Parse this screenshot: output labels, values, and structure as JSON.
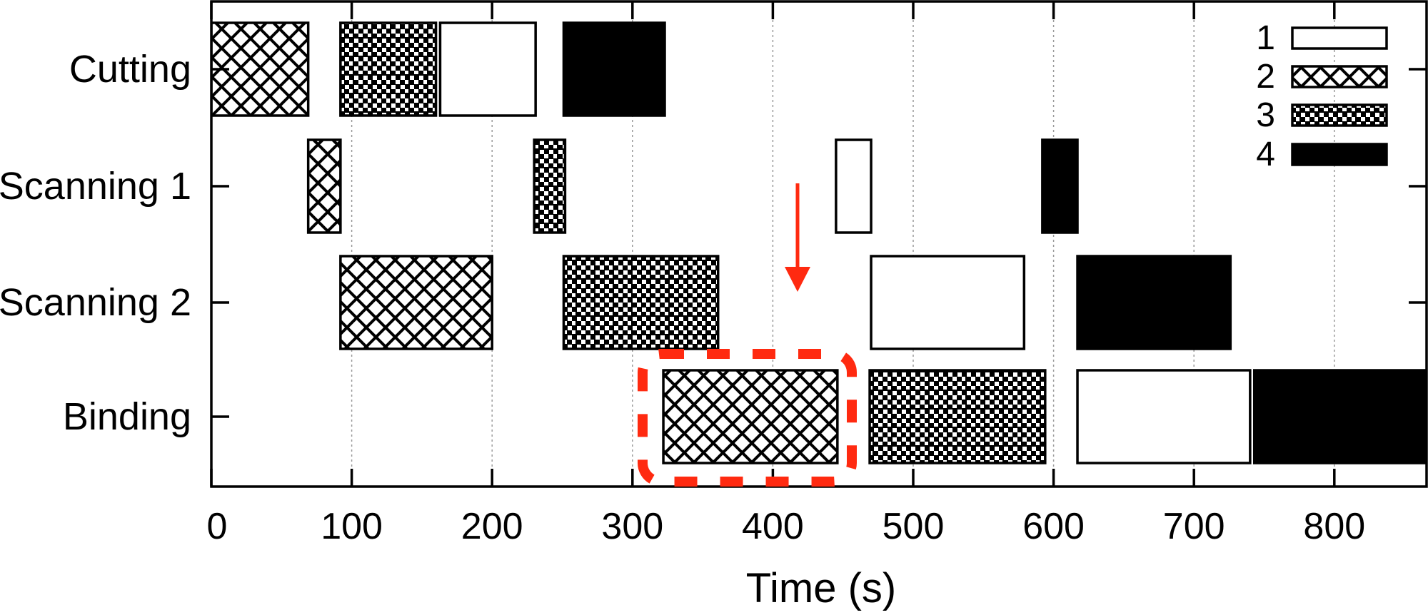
{
  "chart_data": {
    "type": "gantt",
    "title": "",
    "xlabel": "Time (s)",
    "ylabel": "",
    "xlim": [
      0,
      866
    ],
    "x_ticks": [
      0,
      100,
      200,
      300,
      400,
      500,
      600,
      700,
      800
    ],
    "x_tick_labels": [
      "0",
      "100",
      "200",
      "300",
      "400",
      "500",
      "600",
      "700",
      "800"
    ],
    "grid": {
      "x": true,
      "y": false,
      "style": "dotted gray"
    },
    "legend": {
      "position": "top-right",
      "entries": [
        {
          "label": "1",
          "pattern": "empty"
        },
        {
          "label": "2",
          "pattern": "crosshatch"
        },
        {
          "label": "3",
          "pattern": "checker"
        },
        {
          "label": "4",
          "pattern": "solid"
        }
      ]
    },
    "categories": [
      "Cutting",
      "Scanning 1",
      "Scanning 2",
      "Binding"
    ],
    "series": [
      {
        "category": "Cutting",
        "tasks": [
          {
            "job": "2",
            "start": 0,
            "end": 69
          },
          {
            "job": "3",
            "start": 92,
            "end": 160
          },
          {
            "job": "1",
            "start": 163,
            "end": 231
          },
          {
            "job": "4",
            "start": 251,
            "end": 323
          }
        ]
      },
      {
        "category": "Scanning 1",
        "tasks": [
          {
            "job": "2",
            "start": 69,
            "end": 92
          },
          {
            "job": "3",
            "start": 230,
            "end": 252
          },
          {
            "job": "1",
            "start": 445,
            "end": 470
          },
          {
            "job": "4",
            "start": 592,
            "end": 617
          }
        ]
      },
      {
        "category": "Scanning 2",
        "tasks": [
          {
            "job": "2",
            "start": 92,
            "end": 200
          },
          {
            "job": "3",
            "start": 251,
            "end": 361
          },
          {
            "job": "1",
            "start": 470,
            "end": 579
          },
          {
            "job": "4",
            "start": 617,
            "end": 726
          }
        ]
      },
      {
        "category": "Binding",
        "tasks": [
          {
            "job": "2",
            "start": 322,
            "end": 446
          },
          {
            "job": "3",
            "start": 469,
            "end": 594
          },
          {
            "job": "1",
            "start": 617,
            "end": 740
          },
          {
            "job": "4",
            "start": 743,
            "end": 870
          }
        ]
      }
    ],
    "annotations": [
      {
        "type": "arrow",
        "color": "#ff2a10",
        "x": 415,
        "from_row": "between Scanning 1 and Scanning 2",
        "direction": "down"
      },
      {
        "type": "dashed-rounded-box",
        "color": "#ff2a10",
        "around": "Binding job 2 (322-446 s)"
      }
    ]
  },
  "colors": {
    "annotation": "#ff2a10",
    "bar_stroke": "#000000",
    "grid": "#9a9a9a"
  }
}
